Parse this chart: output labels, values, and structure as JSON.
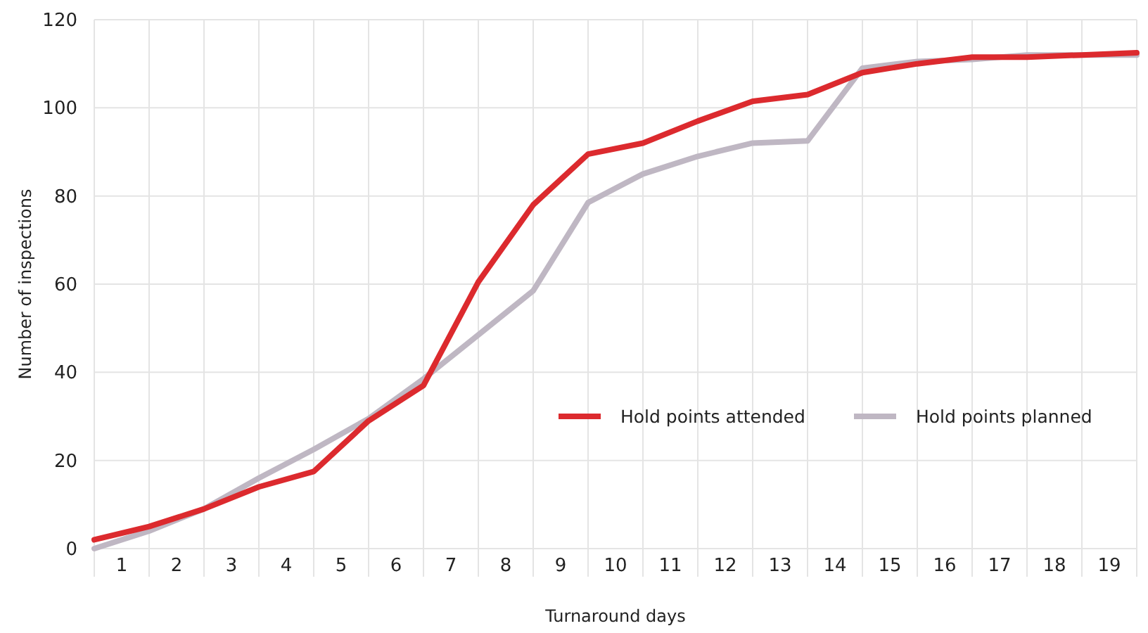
{
  "chart_data": {
    "type": "line",
    "xlabel": "Turnaround days",
    "ylabel": "Number of inspections",
    "x": [
      0,
      1,
      2,
      3,
      4,
      5,
      6,
      7,
      8,
      9,
      10,
      11,
      12,
      13,
      14,
      15,
      16,
      17,
      18,
      19
    ],
    "xlim": [
      0,
      19
    ],
    "xticks": [
      {
        "value": 0,
        "label": null
      },
      {
        "value": 0.5,
        "label": "1"
      },
      {
        "value": 1,
        "label": null
      },
      {
        "value": 1.5,
        "label": "2"
      },
      {
        "value": 2,
        "label": null
      },
      {
        "value": 2.5,
        "label": "3"
      },
      {
        "value": 3,
        "label": null
      },
      {
        "value": 3.5,
        "label": "4"
      },
      {
        "value": 4,
        "label": null
      },
      {
        "value": 4.5,
        "label": "5"
      },
      {
        "value": 5,
        "label": null
      },
      {
        "value": 5.5,
        "label": "6"
      },
      {
        "value": 6,
        "label": null
      },
      {
        "value": 6.5,
        "label": "7"
      },
      {
        "value": 7,
        "label": null
      },
      {
        "value": 7.5,
        "label": "8"
      },
      {
        "value": 8,
        "label": null
      },
      {
        "value": 8.5,
        "label": "9"
      },
      {
        "value": 9,
        "label": null
      },
      {
        "value": 9.5,
        "label": "10"
      },
      {
        "value": 10,
        "label": null
      },
      {
        "value": 10.5,
        "label": "11"
      },
      {
        "value": 11,
        "label": null
      },
      {
        "value": 11.5,
        "label": "12"
      },
      {
        "value": 12,
        "label": null
      },
      {
        "value": 12.5,
        "label": "13"
      },
      {
        "value": 13,
        "label": null
      },
      {
        "value": 13.5,
        "label": "14"
      },
      {
        "value": 14,
        "label": null
      },
      {
        "value": 14.5,
        "label": "15"
      },
      {
        "value": 15,
        "label": null
      },
      {
        "value": 15.5,
        "label": "16"
      },
      {
        "value": 16,
        "label": null
      },
      {
        "value": 16.5,
        "label": "17"
      },
      {
        "value": 17,
        "label": null
      },
      {
        "value": 17.5,
        "label": "18"
      },
      {
        "value": 18,
        "label": null
      },
      {
        "value": 18.5,
        "label": "19"
      },
      {
        "value": 19,
        "label": null
      }
    ],
    "ylim": [
      0,
      120
    ],
    "yticks": [
      0,
      20,
      40,
      60,
      80,
      100,
      120
    ],
    "grid": true,
    "legend": "right",
    "marker": "none",
    "line_style": "solid",
    "series": [
      {
        "name": "Hold points planned",
        "color": "#bfb7c3",
        "values": [
          0,
          4,
          9,
          16,
          22.5,
          29.5,
          38.5,
          48.5,
          58.5,
          78.5,
          85,
          89,
          92,
          92.5,
          109,
          110.5,
          111,
          112,
          112,
          112
        ]
      },
      {
        "name": "Hold points attended",
        "color": "#dc2a2e",
        "values": [
          2,
          5,
          9,
          14,
          17.5,
          29,
          37,
          60.5,
          78,
          89.5,
          92,
          97,
          101.5,
          103,
          108,
          110,
          111.5,
          111.5,
          112,
          112.5
        ]
      }
    ]
  }
}
